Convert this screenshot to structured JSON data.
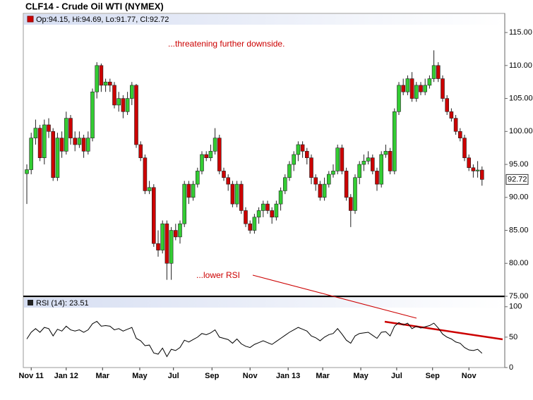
{
  "chart_data": [
    {
      "type": "candlestick",
      "title": "CLF14 - Crude Oil WTI (NYMEX)",
      "legend_label": "Op:94.15, Hi:94.69, Lo:91.77, Cl:92.72",
      "annotations": [
        "...threatening further downside.",
        "...lower RSI"
      ],
      "up_color": "#33cc33",
      "down_color": "#cc0000",
      "ylim": [
        75,
        117.9
      ],
      "yticks": [
        {
          "value": 75,
          "label": "75.00"
        },
        {
          "value": 80,
          "label": "80.00"
        },
        {
          "value": 85,
          "label": "85.00"
        },
        {
          "value": 90,
          "label": "90.00"
        },
        {
          "value": 95,
          "label": "95.00"
        },
        {
          "value": 100,
          "label": "100.00"
        },
        {
          "value": 105,
          "label": "105.00"
        },
        {
          "value": 110,
          "label": "110.00"
        },
        {
          "value": 115,
          "label": "115.00"
        }
      ],
      "candles": [
        [
          93.6,
          95,
          89,
          94.2
        ],
        [
          94.2,
          99.8,
          93.5,
          99
        ],
        [
          99,
          101.8,
          98,
          100.5
        ],
        [
          100.5,
          101,
          95.5,
          96
        ],
        [
          96,
          101.8,
          95,
          101
        ],
        [
          101,
          102,
          99,
          100
        ],
        [
          100,
          100.5,
          92.5,
          93
        ],
        [
          93,
          99.8,
          92.5,
          99
        ],
        [
          99,
          100,
          96,
          97
        ],
        [
          97,
          103,
          96.5,
          102
        ],
        [
          102,
          102.5,
          98,
          99
        ],
        [
          99,
          100,
          97,
          98
        ],
        [
          98,
          100,
          97.5,
          99
        ],
        [
          99,
          99.5,
          96,
          97
        ],
        [
          97,
          100,
          96.5,
          99
        ],
        [
          99,
          106.5,
          98.5,
          106
        ],
        [
          106,
          110.5,
          105,
          110
        ],
        [
          110,
          110.3,
          106,
          107
        ],
        [
          107,
          108,
          106,
          107.5
        ],
        [
          107.5,
          108,
          106,
          107
        ],
        [
          107,
          107.5,
          103.5,
          104
        ],
        [
          104,
          106,
          103,
          105
        ],
        [
          105,
          105.5,
          102,
          103
        ],
        [
          103,
          106,
          102.5,
          105
        ],
        [
          105,
          107.5,
          104,
          107
        ],
        [
          107,
          107.2,
          97.5,
          98
        ],
        [
          98,
          98.5,
          95.5,
          96
        ],
        [
          96,
          96.5,
          90.5,
          91
        ],
        [
          91,
          92.5,
          90.5,
          91.5
        ],
        [
          91.5,
          92,
          82.5,
          83
        ],
        [
          83,
          85,
          81,
          82
        ],
        [
          82,
          86.5,
          81.5,
          86
        ],
        [
          86,
          86.5,
          77.5,
          80
        ],
        [
          80,
          85.5,
          77.5,
          85
        ],
        [
          85,
          86,
          83.5,
          84
        ],
        [
          84,
          86.5,
          83,
          86
        ],
        [
          86,
          92.5,
          85.5,
          92
        ],
        [
          92,
          92.5,
          89,
          90
        ],
        [
          90,
          92.5,
          89.5,
          92
        ],
        [
          92,
          94.5,
          91.5,
          94
        ],
        [
          94,
          97,
          93.5,
          96.5
        ],
        [
          96.5,
          97,
          95.5,
          96
        ],
        [
          96,
          98,
          95.5,
          97
        ],
        [
          97,
          100.5,
          96.5,
          99
        ],
        [
          99,
          99.5,
          93.5,
          94
        ],
        [
          94,
          94.5,
          92.5,
          93
        ],
        [
          93,
          93.5,
          91,
          92
        ],
        [
          92,
          92.5,
          88.5,
          89
        ],
        [
          89,
          92.5,
          88.5,
          92
        ],
        [
          92,
          92.5,
          87.5,
          88
        ],
        [
          88,
          88.5,
          85.5,
          86
        ],
        [
          86,
          86.5,
          84.5,
          85
        ],
        [
          85,
          87.5,
          84.5,
          87
        ],
        [
          87,
          88.5,
          86,
          88
        ],
        [
          88,
          89.5,
          87,
          89
        ],
        [
          89,
          89.5,
          87.5,
          88
        ],
        [
          88,
          88.5,
          86,
          87
        ],
        [
          87,
          89.5,
          86.5,
          89
        ],
        [
          89,
          91.5,
          88,
          91
        ],
        [
          91,
          93.5,
          90.5,
          93
        ],
        [
          93,
          95.5,
          92.5,
          95
        ],
        [
          95,
          97,
          94,
          96.5
        ],
        [
          96.5,
          98.5,
          95.5,
          98
        ],
        [
          98,
          98.5,
          96,
          97
        ],
        [
          97,
          97.5,
          95,
          96
        ],
        [
          96,
          96.5,
          92,
          93
        ],
        [
          93,
          93.5,
          91,
          92
        ],
        [
          92,
          92.5,
          89.5,
          90
        ],
        [
          90,
          93,
          89.5,
          92
        ],
        [
          92,
          94,
          91.5,
          93.5
        ],
        [
          93.5,
          95,
          93,
          94
        ],
        [
          94,
          98,
          93.5,
          97.5
        ],
        [
          97.5,
          98,
          93.5,
          94
        ],
        [
          94,
          94.5,
          89.5,
          90
        ],
        [
          90,
          90.5,
          85.5,
          88
        ],
        [
          88,
          93.5,
          87.5,
          93
        ],
        [
          93,
          95.5,
          92,
          95
        ],
        [
          95,
          96.5,
          94,
          95.5
        ],
        [
          95.5,
          97,
          95,
          96
        ],
        [
          96,
          96.5,
          93.5,
          94
        ],
        [
          94,
          94.5,
          91,
          92
        ],
        [
          92,
          97,
          91.5,
          96.5
        ],
        [
          96.5,
          98,
          96,
          97
        ],
        [
          97,
          97.5,
          93.5,
          94
        ],
        [
          94,
          103.5,
          93.5,
          103
        ],
        [
          103,
          107.5,
          102.5,
          107
        ],
        [
          107,
          108,
          105.5,
          106
        ],
        [
          106,
          108.5,
          105.5,
          108
        ],
        [
          108,
          109,
          104.5,
          105
        ],
        [
          105,
          107.5,
          104.5,
          107
        ],
        [
          107,
          107.5,
          105.5,
          106
        ],
        [
          106,
          108,
          105.5,
          107
        ],
        [
          107,
          108.5,
          106.5,
          108
        ],
        [
          108,
          112.3,
          107.5,
          110
        ],
        [
          110,
          110.5,
          107.5,
          108
        ],
        [
          108,
          108.5,
          104.5,
          105
        ],
        [
          105,
          105.5,
          102.5,
          103
        ],
        [
          103,
          103.5,
          101.5,
          102
        ],
        [
          102,
          102.5,
          99.5,
          100
        ],
        [
          100,
          100.5,
          98.5,
          99
        ],
        [
          99,
          99.5,
          95.5,
          96
        ],
        [
          96,
          96.5,
          94,
          94.5
        ],
        [
          94.5,
          95,
          93,
          94
        ],
        [
          94,
          95.5,
          93,
          94.15
        ],
        [
          94.15,
          94.69,
          91.77,
          92.72
        ]
      ]
    },
    {
      "type": "line",
      "legend_label": "RSI (14): 23.51",
      "color": "#000000",
      "ylim": [
        0,
        116
      ],
      "yticks": [
        0,
        50,
        100
      ],
      "xticks": [
        {
          "value": 1,
          "label": "Nov 11"
        },
        {
          "value": 9,
          "label": "Jan 12"
        },
        {
          "value": 17.3,
          "label": "Mar"
        },
        {
          "value": 25.8,
          "label": "May"
        },
        {
          "value": 33.5,
          "label": "Jul"
        },
        {
          "value": 42.3,
          "label": "Sep"
        },
        {
          "value": 51,
          "label": "Nov"
        },
        {
          "value": 59.7,
          "label": "Jan 13"
        },
        {
          "value": 67.6,
          "label": "Mar"
        },
        {
          "value": 76.3,
          "label": "May"
        },
        {
          "value": 84.5,
          "label": "Jul"
        },
        {
          "value": 92.7,
          "label": "Sep"
        },
        {
          "value": 101,
          "label": "Nov"
        }
      ],
      "values": [
        47,
        58,
        64,
        58,
        66,
        64,
        52,
        63,
        60,
        68,
        62,
        60,
        62,
        58,
        62,
        72,
        76,
        68,
        69,
        68,
        62,
        64,
        60,
        63,
        66,
        48,
        44,
        36,
        37,
        24,
        22,
        32,
        18,
        30,
        28,
        33,
        45,
        42,
        46,
        50,
        56,
        54,
        57,
        62,
        50,
        48,
        46,
        40,
        47,
        39,
        35,
        33,
        38,
        41,
        44,
        41,
        38,
        43,
        48,
        53,
        58,
        62,
        66,
        63,
        60,
        52,
        49,
        44,
        50,
        54,
        56,
        64,
        55,
        45,
        40,
        52,
        56,
        57,
        58,
        53,
        48,
        58,
        59,
        52,
        68,
        74,
        70,
        73,
        64,
        68,
        65,
        67,
        69,
        73,
        65,
        55,
        50,
        47,
        42,
        40,
        33,
        29,
        28,
        30,
        23.51
      ]
    }
  ]
}
